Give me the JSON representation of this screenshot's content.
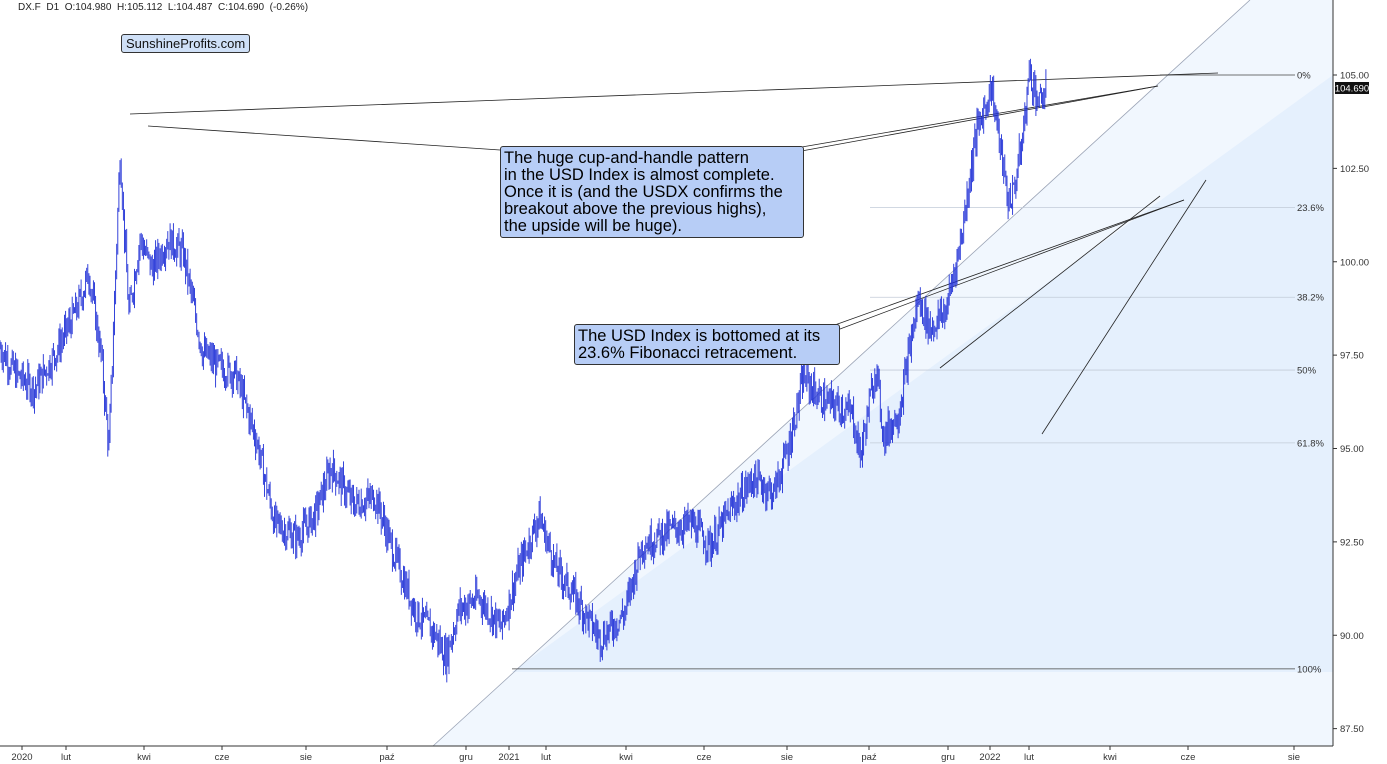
{
  "header": {
    "symbol": "DX.F",
    "timeframe": "D1",
    "ohlc": "O:104.980  H:105.112  L:104.487  C:104.690  (-0.26%)"
  },
  "brand": "SunshineProfits.com",
  "annotations": {
    "cup_handle": "The huge cup-and-handle pattern\nin the USD Index is almost complete.\nOnce it is (and the USDX confirms the\nbreakout above the previous highs),\nthe upside will be huge).",
    "fib_bottom": "The USD Index is bottomed at its\n23.6% Fibonacci retracement."
  },
  "colors": {
    "price": "#1f2fd6",
    "fib_fill": "#dbe8fb",
    "wedge_fill": "#e8f1fd",
    "lines": "#222222",
    "last_price_bg": "#111111"
  },
  "chart_data": {
    "type": "line",
    "title": "",
    "ylabel": "",
    "xlabel": "",
    "ylim": [
      87.5,
      107.5
    ],
    "y_ticks": [
      "87.50",
      "90.00",
      "92.50",
      "95.00",
      "97.50",
      "100.00",
      "102.50",
      "105.00"
    ],
    "last_price": "104.690",
    "x_ticks": [
      "2020",
      "lut",
      "kwi",
      "cze",
      "sie",
      "paź",
      "gru",
      "2021",
      "lut",
      "kwi",
      "cze",
      "sie",
      "paź",
      "gru",
      "2022",
      "lut",
      "kwi",
      "cze",
      "sie"
    ],
    "fib_levels": [
      {
        "label": "0%",
        "value": 105.0
      },
      {
        "label": "23.6%",
        "value": 101.45
      },
      {
        "label": "38.2%",
        "value": 99.05
      },
      {
        "label": "50%",
        "value": 97.1
      },
      {
        "label": "61.8%",
        "value": 95.15
      },
      {
        "label": "100%",
        "value": 89.1
      }
    ],
    "series": [
      {
        "values": [
          {
            "x": "2019-12-02",
            "y": 97.7
          },
          {
            "x": "2019-12-16",
            "y": 97.0
          },
          {
            "x": "2020-01-02",
            "y": 96.6
          },
          {
            "x": "2020-01-20",
            "y": 97.5
          },
          {
            "x": "2020-02-10",
            "y": 98.8
          },
          {
            "x": "2020-02-20",
            "y": 99.7
          },
          {
            "x": "2020-03-02",
            "y": 97.5
          },
          {
            "x": "2020-03-09",
            "y": 95.0
          },
          {
            "x": "2020-03-19",
            "y": 102.9
          },
          {
            "x": "2020-03-27",
            "y": 98.6
          },
          {
            "x": "2020-04-06",
            "y": 100.6
          },
          {
            "x": "2020-04-17",
            "y": 99.8
          },
          {
            "x": "2020-05-01",
            "y": 100.6
          },
          {
            "x": "2020-05-15",
            "y": 100.2
          },
          {
            "x": "2020-06-01",
            "y": 97.6
          },
          {
            "x": "2020-06-15",
            "y": 97.2
          },
          {
            "x": "2020-07-01",
            "y": 97.0
          },
          {
            "x": "2020-07-20",
            "y": 95.2
          },
          {
            "x": "2020-08-05",
            "y": 93.0
          },
          {
            "x": "2020-08-25",
            "y": 92.6
          },
          {
            "x": "2020-09-10",
            "y": 93.2
          },
          {
            "x": "2020-09-25",
            "y": 94.5
          },
          {
            "x": "2020-10-15",
            "y": 93.5
          },
          {
            "x": "2020-11-04",
            "y": 93.7
          },
          {
            "x": "2020-11-20",
            "y": 92.2
          },
          {
            "x": "2020-12-10",
            "y": 90.6
          },
          {
            "x": "2020-12-28",
            "y": 90.0
          },
          {
            "x": "2021-01-06",
            "y": 89.4
          },
          {
            "x": "2021-01-18",
            "y": 90.7
          },
          {
            "x": "2021-02-05",
            "y": 91.0
          },
          {
            "x": "2021-02-25",
            "y": 90.2
          },
          {
            "x": "2021-03-12",
            "y": 91.7
          },
          {
            "x": "2021-03-31",
            "y": 93.2
          },
          {
            "x": "2021-04-15",
            "y": 91.8
          },
          {
            "x": "2021-05-05",
            "y": 90.9
          },
          {
            "x": "2021-05-25",
            "y": 89.9
          },
          {
            "x": "2021-06-16",
            "y": 90.6
          },
          {
            "x": "2021-07-01",
            "y": 92.4
          },
          {
            "x": "2021-07-25",
            "y": 92.8
          },
          {
            "x": "2021-08-15",
            "y": 93.0
          },
          {
            "x": "2021-09-01",
            "y": 92.4
          },
          {
            "x": "2021-09-20",
            "y": 93.4
          },
          {
            "x": "2021-10-10",
            "y": 94.2
          },
          {
            "x": "2021-10-28",
            "y": 93.8
          },
          {
            "x": "2021-11-10",
            "y": 95.0
          },
          {
            "x": "2021-11-24",
            "y": 96.9
          },
          {
            "x": "2021-12-10",
            "y": 96.3
          },
          {
            "x": "2021-12-28",
            "y": 96.1
          },
          {
            "x": "2022-01-07",
            "y": 95.9
          },
          {
            "x": "2022-01-14",
            "y": 94.8
          },
          {
            "x": "2022-01-28",
            "y": 97.2
          },
          {
            "x": "2022-02-04",
            "y": 95.3
          },
          {
            "x": "2022-02-18",
            "y": 96.0
          },
          {
            "x": "2022-03-07",
            "y": 99.0
          },
          {
            "x": "2022-03-18",
            "y": 98.2
          },
          {
            "x": "2022-04-01",
            "y": 98.7
          },
          {
            "x": "2022-04-14",
            "y": 100.5
          },
          {
            "x": "2022-04-28",
            "y": 103.4
          },
          {
            "x": "2022-05-12",
            "y": 104.7
          },
          {
            "x": "2022-05-27",
            "y": 101.6
          },
          {
            "x": "2022-06-01",
            "y": 101.9
          },
          {
            "x": "2022-06-09",
            "y": 103.3
          },
          {
            "x": "2022-06-15",
            "y": 105.1
          },
          {
            "x": "2022-06-24",
            "y": 104.2
          },
          {
            "x": "2022-07-01",
            "y": 104.7
          }
        ]
      }
    ]
  }
}
